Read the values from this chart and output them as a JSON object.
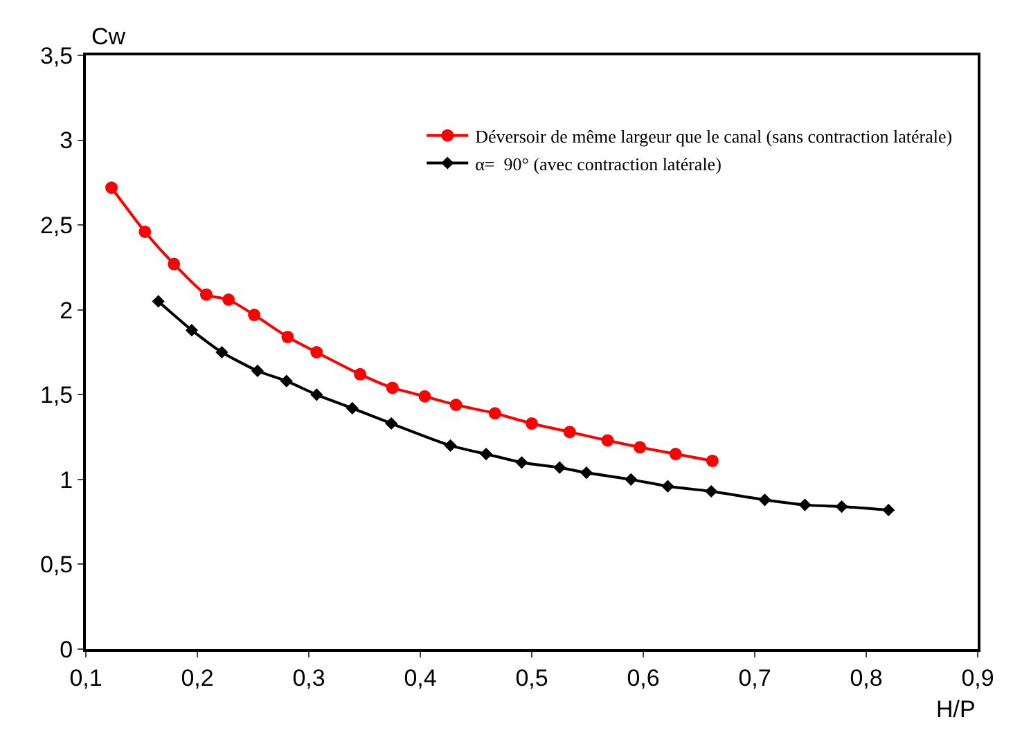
{
  "chart_data": {
    "type": "line",
    "xlabel": "H/P",
    "ylabel": "Cw",
    "xlim": [
      0.1,
      0.9
    ],
    "ylim": [
      0,
      3.5
    ],
    "xticks": [
      {
        "value": 0.1,
        "label": "0,1"
      },
      {
        "value": 0.2,
        "label": "0,2"
      },
      {
        "value": 0.3,
        "label": "0,3"
      },
      {
        "value": 0.4,
        "label": "0,4"
      },
      {
        "value": 0.5,
        "label": "0,5"
      },
      {
        "value": 0.6,
        "label": "0,6"
      },
      {
        "value": 0.7,
        "label": "0,7"
      },
      {
        "value": 0.8,
        "label": "0,8"
      },
      {
        "value": 0.9,
        "label": "0,9"
      }
    ],
    "yticks": [
      0,
      {
        "value": 0.5,
        "label": "0,5"
      },
      1,
      {
        "value": 1.5,
        "label": "1,5"
      },
      2,
      {
        "value": 2.5,
        "label": "2,5"
      },
      3,
      {
        "value": 3.5,
        "label": "3,5"
      }
    ],
    "legend": "top right",
    "series": [
      {
        "name": "Déversoir de même largeur que le canal (sans contraction latérale)",
        "color": "#ff0000",
        "marker": "circle",
        "x": [
          0.123,
          0.153,
          0.179,
          0.208,
          0.228,
          0.251,
          0.281,
          0.307,
          0.346,
          0.375,
          0.404,
          0.432,
          0.467,
          0.5,
          0.534,
          0.568,
          0.597,
          0.629,
          0.662
        ],
        "values": [
          2.72,
          2.46,
          2.27,
          2.09,
          2.06,
          1.97,
          1.84,
          1.75,
          1.62,
          1.54,
          1.49,
          1.44,
          1.39,
          1.33,
          1.28,
          1.23,
          1.19,
          1.15,
          1.11
        ]
      },
      {
        "name": "α=  90° (avec contraction latérale)",
        "color": "#000000",
        "marker": "diamond",
        "x": [
          0.165,
          0.195,
          0.222,
          0.254,
          0.28,
          0.307,
          0.339,
          0.374,
          0.427,
          0.459,
          0.491,
          0.525,
          0.549,
          0.589,
          0.622,
          0.661,
          0.709,
          0.745,
          0.778,
          0.82
        ],
        "values": [
          2.05,
          1.88,
          1.75,
          1.64,
          1.58,
          1.5,
          1.42,
          1.33,
          1.2,
          1.15,
          1.1,
          1.07,
          1.04,
          1.0,
          0.96,
          0.93,
          0.88,
          0.85,
          0.84,
          0.82
        ]
      }
    ]
  }
}
